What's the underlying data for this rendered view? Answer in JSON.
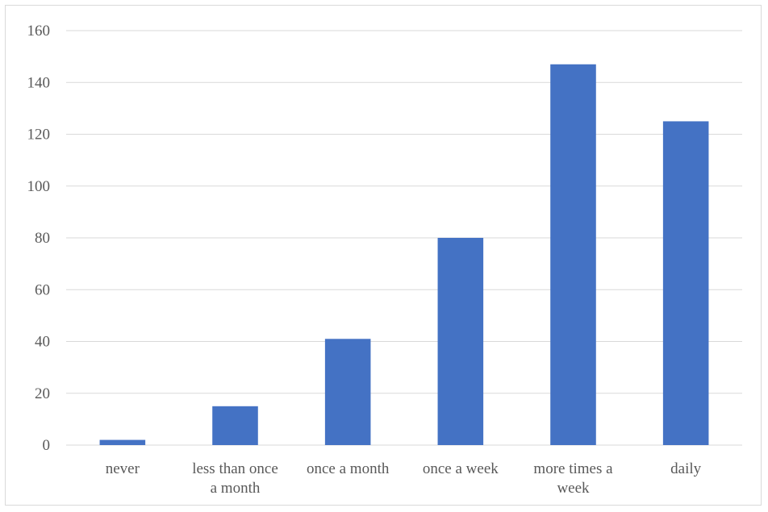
{
  "chart_data": {
    "type": "bar",
    "title": "",
    "xlabel": "",
    "ylabel": "",
    "categories": [
      [
        "never"
      ],
      [
        "less than once",
        "a month"
      ],
      [
        "once a month"
      ],
      [
        "once a week"
      ],
      [
        "more times a",
        "week"
      ],
      [
        "daily"
      ]
    ],
    "values": [
      2,
      15,
      41,
      80,
      147,
      125
    ],
    "ylim": [
      0,
      160
    ],
    "yticks": [
      0,
      20,
      40,
      60,
      80,
      100,
      120,
      140,
      160
    ],
    "grid": true,
    "legend": "none",
    "bar_color": "#4472c4"
  }
}
